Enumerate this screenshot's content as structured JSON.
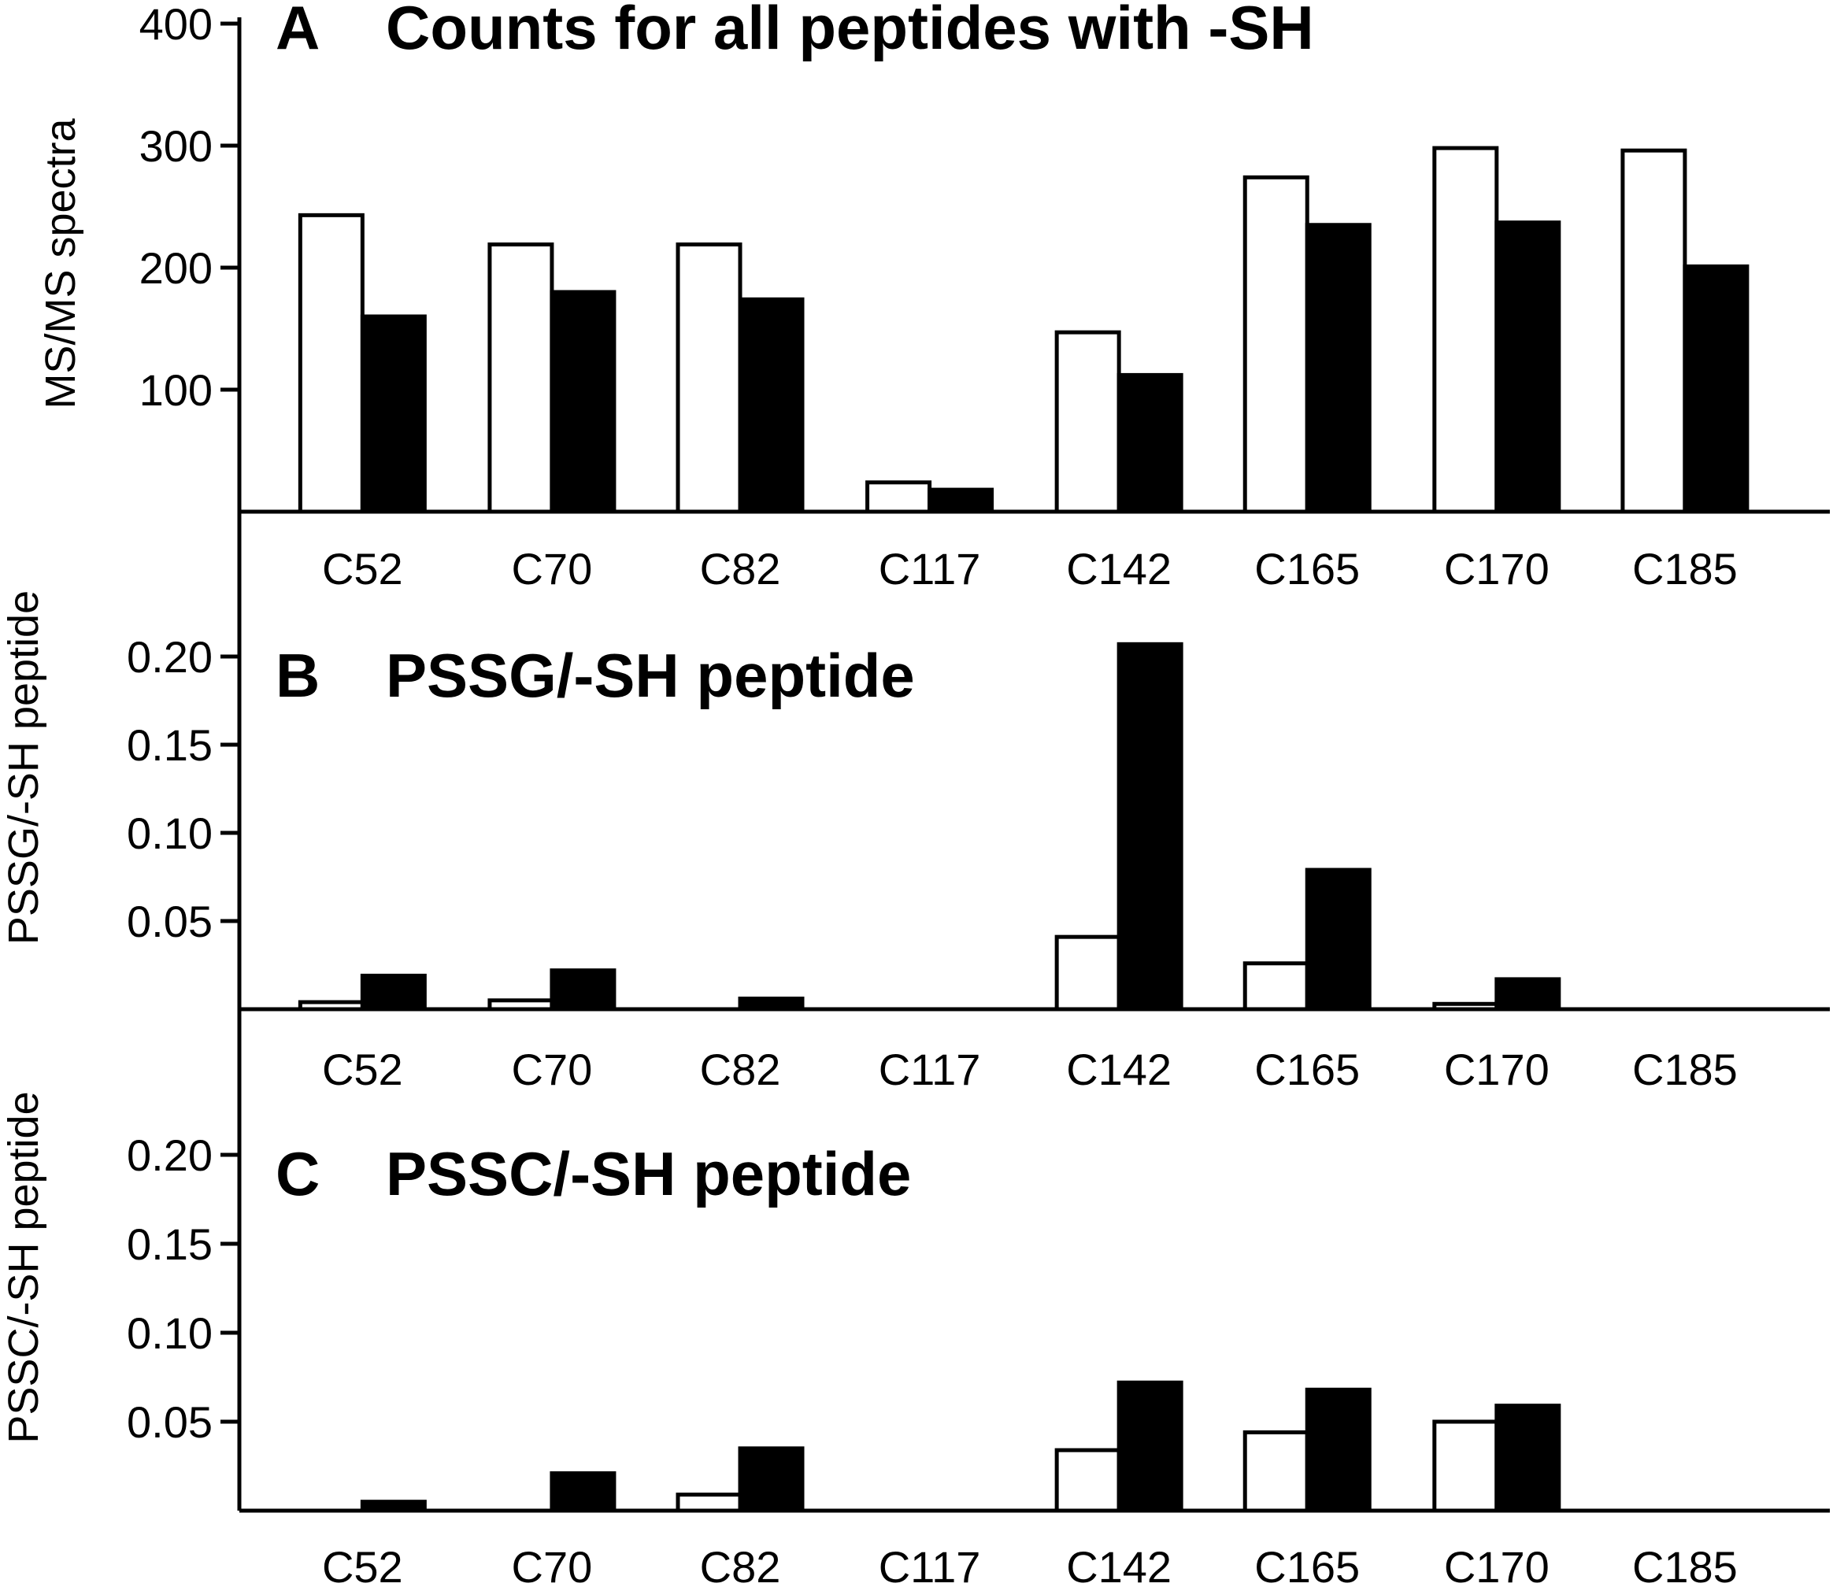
{
  "chart_data": [
    {
      "type": "bar",
      "panel": "A",
      "title": "Counts for all peptides with -SH",
      "xlabel": "",
      "ylabel": "MS/MS spectra",
      "ylim": [
        0,
        400
      ],
      "yticks": [
        100,
        200,
        300,
        400
      ],
      "ytick_labels": [
        "100",
        "200",
        "300",
        "400"
      ],
      "grid": false,
      "categories": [
        "C52",
        "C70",
        "C82",
        "C117",
        "C142",
        "C165",
        "C170",
        "C185"
      ],
      "series": [
        {
          "name": "open",
          "fill": "#ffffff",
          "values": [
            243,
            219,
            219,
            24,
            147,
            274,
            298,
            296
          ]
        },
        {
          "name": "filled",
          "fill": "#000000",
          "values": [
            160,
            180,
            174,
            18,
            112,
            235,
            237,
            201
          ]
        }
      ]
    },
    {
      "type": "bar",
      "panel": "B",
      "title": "PSSG/-SH peptide",
      "xlabel": "",
      "ylabel": "PSSG/-SH peptide",
      "ylim": [
        0,
        0.22
      ],
      "yticks": [
        0.05,
        0.1,
        0.15,
        0.2
      ],
      "ytick_labels": [
        "0.05",
        "0.10",
        "0.15",
        "0.20"
      ],
      "grid": false,
      "categories": [
        "C52",
        "C70",
        "C82",
        "C117",
        "C142",
        "C165",
        "C170",
        "C185"
      ],
      "series": [
        {
          "name": "open",
          "fill": "#ffffff",
          "values": [
            0.004,
            0.005,
            0,
            0,
            0.041,
            0.026,
            0.003,
            0
          ]
        },
        {
          "name": "filled",
          "fill": "#000000",
          "values": [
            0.019,
            0.022,
            0.006,
            0,
            0.207,
            0.079,
            0.017,
            0
          ]
        }
      ]
    },
    {
      "type": "bar",
      "panel": "C",
      "title": "PSSC/-SH peptide",
      "xlabel": "",
      "ylabel": "PSSC/-SH peptide",
      "ylim": [
        0,
        0.22
      ],
      "yticks": [
        0.05,
        0.1,
        0.15,
        0.2
      ],
      "ytick_labels": [
        "0.05",
        "0.10",
        "0.15",
        "0.20"
      ],
      "grid": false,
      "categories": [
        "C52",
        "C70",
        "C82",
        "C117",
        "C142",
        "C165",
        "C170",
        "C185"
      ],
      "series": [
        {
          "name": "open",
          "fill": "#ffffff",
          "values": [
            0,
            0,
            0.009,
            0,
            0.034,
            0.044,
            0.05,
            0
          ]
        },
        {
          "name": "filled",
          "fill": "#000000",
          "values": [
            0.005,
            0.021,
            0.035,
            0,
            0.072,
            0.068,
            0.059,
            0
          ]
        }
      ]
    }
  ]
}
